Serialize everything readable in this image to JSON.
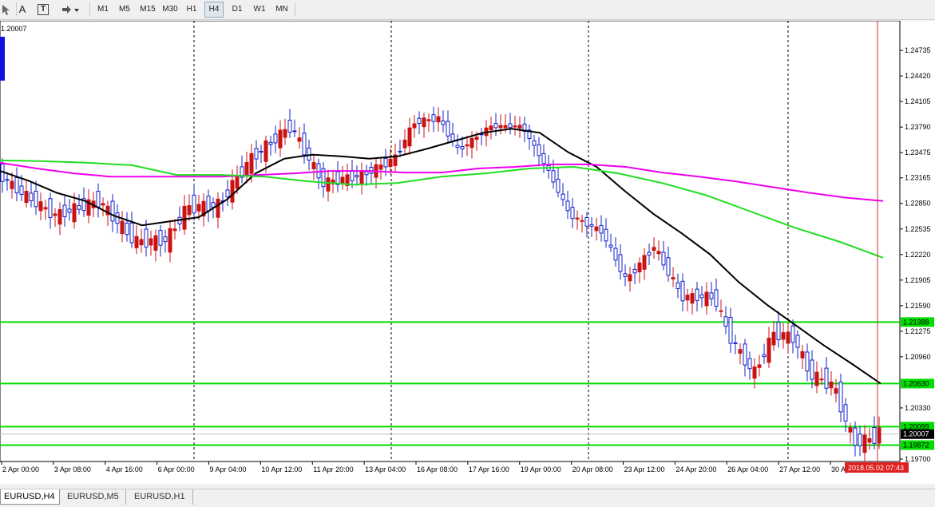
{
  "toolbar": {
    "timeframes": [
      {
        "label": "M1",
        "active": false
      },
      {
        "label": "M5",
        "active": false
      },
      {
        "label": "M15",
        "active": false
      },
      {
        "label": "M30",
        "active": false
      },
      {
        "label": "H1",
        "active": false
      },
      {
        "label": "H4",
        "active": true
      },
      {
        "label": "D1",
        "active": false
      },
      {
        "label": "W1",
        "active": false
      },
      {
        "label": "MN",
        "active": false
      }
    ],
    "text_tool_label": "A",
    "text_label_tool_label": "T"
  },
  "chart": {
    "price_label_topleft": "1.20007",
    "current_time_label": "2018.05.02 07:43",
    "symbol": "EURUSD",
    "timeframe": "H4"
  },
  "chart_data": {
    "type": "candlestick",
    "ylim": [
      1.1967,
      1.251
    ],
    "y_ticks": [
      "1.24735",
      "1.24420",
      "1.24105",
      "1.23790",
      "1.23475",
      "1.23165",
      "1.22850",
      "1.22535",
      "1.22220",
      "1.21905",
      "1.21590",
      "1.21275",
      "1.20960",
      "1.20330",
      "1.19700"
    ],
    "x_ticks": [
      "2 Apr 00:00",
      "3 Apr 08:00",
      "4 Apr 16:00",
      "6 Apr 00:00",
      "9 Apr 04:00",
      "10 Apr 12:00",
      "11 Apr 20:00",
      "13 Apr 04:00",
      "16 Apr 08:00",
      "17 Apr 16:00",
      "19 Apr 00:00",
      "20 Apr 08:00",
      "23 Apr 12:00",
      "24 Apr 20:00",
      "26 Apr 04:00",
      "27 Apr 12:00",
      "30 Apr"
    ],
    "horizontal_levels": [
      {
        "value": 1.21388,
        "label": "1.21388",
        "color": "#00dd00"
      },
      {
        "value": 1.2063,
        "label": "1.20630",
        "color": "#00dd00"
      },
      {
        "value": 1.20099,
        "label": "1.20099",
        "color": "#00dd00"
      },
      {
        "value": 1.19872,
        "label": "1.19872",
        "color": "#00dd00"
      }
    ],
    "current_price": {
      "value": 1.20007,
      "label": "1.20007"
    },
    "series": [
      {
        "color": "#000000",
        "points": [
          1.2325,
          1.2313,
          1.2298,
          1.2288,
          1.227,
          1.2258,
          1.2263,
          1.2268,
          1.229,
          1.2322,
          1.234,
          1.2345,
          1.2343,
          1.234,
          1.2343,
          1.2352,
          1.2362,
          1.2372,
          1.2377,
          1.2372,
          1.2348,
          1.233,
          1.23,
          1.2272,
          1.2248,
          1.2222,
          1.2188,
          1.216,
          1.2135,
          1.211,
          1.2087,
          1.2063
        ]
      },
      {
        "color": "#ee00ee",
        "points": [
          1.2335,
          1.2328,
          1.2322,
          1.2318,
          1.2318,
          1.2318,
          1.2318,
          1.232,
          1.2322,
          1.2325,
          1.2325,
          1.2323,
          1.2323,
          1.2328,
          1.233,
          1.2333,
          1.2333,
          1.233,
          1.2323,
          1.2318,
          1.2312,
          1.2305,
          1.2298,
          1.2292,
          1.2288
        ]
      },
      {
        "color": "#22dd22",
        "points": [
          1.2338,
          1.2337,
          1.2335,
          1.2332,
          1.232,
          1.232,
          1.2318,
          1.2312,
          1.2308,
          1.231,
          1.2318,
          1.2322,
          1.2328,
          1.233,
          1.2322,
          1.231,
          1.2295,
          1.2275,
          1.2255,
          1.2238,
          1.2218
        ]
      }
    ]
  },
  "tabs": [
    {
      "label": "EURUSD,H4",
      "active": true
    },
    {
      "label": "EURUSD,M5",
      "active": false
    },
    {
      "label": "EURUSD,H1",
      "active": false
    }
  ]
}
